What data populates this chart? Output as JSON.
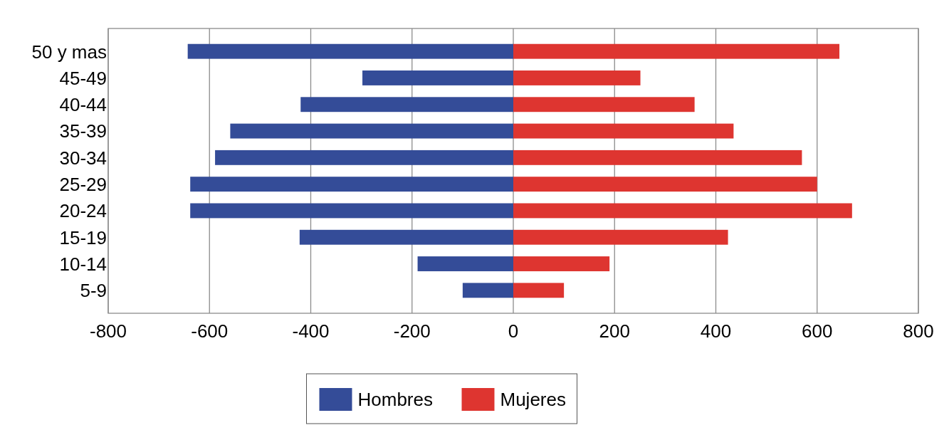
{
  "chart_data": {
    "type": "bar",
    "orientation": "horizontal",
    "categories": [
      "50 y mas",
      "45-49",
      "40-44",
      "35-39",
      "30-34",
      "25-29",
      "20-24",
      "15-19",
      "10-14",
      "5-9"
    ],
    "series": [
      {
        "name": "Hombres",
        "color": "#344c98",
        "values": [
          -643,
          -298,
          -420,
          -559,
          -589,
          -638,
          -638,
          -422,
          -189,
          -100
        ]
      },
      {
        "name": "Mujeres",
        "color": "#de3530",
        "values": [
          644,
          251,
          358,
          435,
          570,
          600,
          669,
          424,
          190,
          100
        ]
      }
    ],
    "stacked": true,
    "xlim": [
      -800,
      800
    ],
    "xticks": [
      -800,
      -600,
      -400,
      -200,
      0,
      200,
      400,
      600,
      800
    ],
    "grid": "x",
    "legend": "bottom"
  }
}
